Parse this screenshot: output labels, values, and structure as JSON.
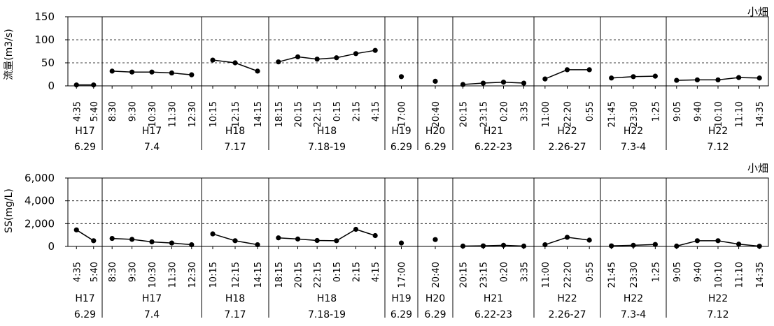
{
  "chart_data": [
    {
      "type": "line",
      "station_label": "小畑",
      "ylabel": "流量(m3/s)",
      "ylim": [
        0,
        150
      ],
      "yticks": [
        "0",
        "50",
        "100",
        "150"
      ],
      "grid": "dashed horizontal",
      "events": [
        {
          "year": "H17",
          "date": "6.29",
          "times": [
            "4:35",
            "5:40"
          ],
          "values": [
            2,
            2
          ]
        },
        {
          "year": "H17",
          "date": "7.4",
          "times": [
            "8:30",
            "9:30",
            "10:30",
            "11:30",
            "12:30"
          ],
          "values": [
            32,
            30,
            30,
            28,
            24
          ]
        },
        {
          "year": "H18",
          "date": "7.17",
          "times": [
            "10:15",
            "12:15",
            "14:15"
          ],
          "values": [
            56,
            50,
            32
          ]
        },
        {
          "year": "H18",
          "date": "7.18-19",
          "times": [
            "18:15",
            "20:15",
            "22:15",
            "0:15",
            "2:15",
            "4:15"
          ],
          "values": [
            52,
            63,
            58,
            61,
            70,
            77
          ]
        },
        {
          "year": "H19",
          "date": "6.29",
          "times": [
            "17:00"
          ],
          "values": [
            20
          ]
        },
        {
          "year": "H20",
          "date": "6.29",
          "times": [
            "20:40"
          ],
          "values": [
            10
          ]
        },
        {
          "year": "H21",
          "date": "6.22-23",
          "times": [
            "20:15",
            "23:15",
            "0:20",
            "3:35"
          ],
          "values": [
            3,
            6,
            8,
            6
          ]
        },
        {
          "year": "H22",
          "date": "2.26-27",
          "times": [
            "11:00",
            "22:20",
            "0:55"
          ],
          "values": [
            15,
            35,
            35
          ]
        },
        {
          "year": "H22",
          "date": "7.3-4",
          "times": [
            "21:45",
            "23:30",
            "1:25"
          ],
          "values": [
            17,
            20,
            21
          ]
        },
        {
          "year": "H22",
          "date": "7.12",
          "times": [
            "9:05",
            "9:40",
            "10:10",
            "11:10",
            "14:35"
          ],
          "values": [
            12,
            13,
            13,
            18,
            17
          ]
        }
      ]
    },
    {
      "type": "line",
      "station_label": "小畑",
      "ylabel": "SS(mg/L)",
      "ylim": [
        0,
        6000
      ],
      "yticks": [
        "0",
        "2,000",
        "4,000",
        "6,000"
      ],
      "grid": "dashed horizontal",
      "events": [
        {
          "year": "H17",
          "date": "6.29",
          "times": [
            "4:35",
            "5:40"
          ],
          "values": [
            1450,
            500
          ]
        },
        {
          "year": "H17",
          "date": "7.4",
          "times": [
            "8:30",
            "9:30",
            "10:30",
            "11:30",
            "12:30"
          ],
          "values": [
            700,
            620,
            400,
            300,
            150
          ]
        },
        {
          "year": "H18",
          "date": "7.17",
          "times": [
            "10:15",
            "12:15",
            "14:15"
          ],
          "values": [
            1100,
            500,
            150
          ]
        },
        {
          "year": "H18",
          "date": "7.18-19",
          "times": [
            "18:15",
            "20:15",
            "22:15",
            "0:15",
            "2:15",
            "4:15"
          ],
          "values": [
            750,
            650,
            520,
            500,
            1500,
            950
          ]
        },
        {
          "year": "H19",
          "date": "6.29",
          "times": [
            "17:00"
          ],
          "values": [
            300
          ]
        },
        {
          "year": "H20",
          "date": "6.29",
          "times": [
            "20:40"
          ],
          "values": [
            600
          ]
        },
        {
          "year": "H21",
          "date": "6.22-23",
          "times": [
            "20:15",
            "23:15",
            "0:20",
            "3:35"
          ],
          "values": [
            30,
            50,
            100,
            30
          ]
        },
        {
          "year": "H22",
          "date": "2.26-27",
          "times": [
            "11:00",
            "22:20",
            "0:55"
          ],
          "values": [
            150,
            800,
            550
          ]
        },
        {
          "year": "H22",
          "date": "7.3-4",
          "times": [
            "21:45",
            "23:30",
            "1:25"
          ],
          "values": [
            50,
            100,
            170
          ]
        },
        {
          "year": "H22",
          "date": "7.12",
          "times": [
            "9:05",
            "9:40",
            "10:10",
            "11:10",
            "14:35"
          ],
          "values": [
            30,
            500,
            500,
            200,
            20
          ]
        }
      ]
    }
  ]
}
